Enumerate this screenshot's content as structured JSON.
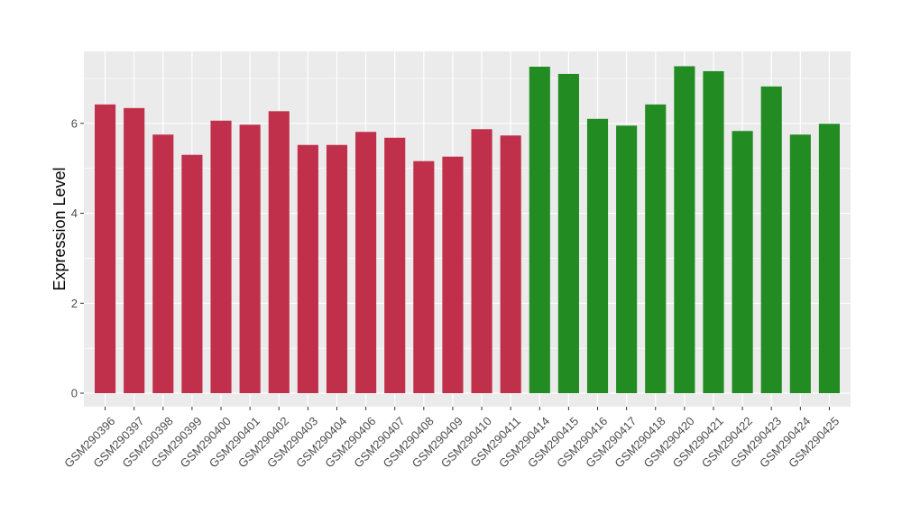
{
  "chart_data": {
    "type": "bar",
    "title": "",
    "xlabel": "",
    "ylabel": "Expression Level",
    "ylim": [
      -0.3,
      7.6
    ],
    "yticks": [
      0,
      2,
      4,
      6
    ],
    "grid": true,
    "legend": "none",
    "colors": {
      "group_a": "#c0304a",
      "group_b": "#228b22",
      "panel": "#ebebeb",
      "grid": "#ffffff"
    },
    "categories": [
      "GSM290396",
      "GSM290397",
      "GSM290398",
      "GSM290399",
      "GSM290400",
      "GSM290401",
      "GSM290402",
      "GSM290403",
      "GSM290404",
      "GSM290406",
      "GSM290407",
      "GSM290408",
      "GSM290409",
      "GSM290410",
      "GSM290411",
      "GSM290414",
      "GSM290415",
      "GSM290416",
      "GSM290417",
      "GSM290418",
      "GSM290420",
      "GSM290421",
      "GSM290422",
      "GSM290423",
      "GSM290424",
      "GSM290425"
    ],
    "values": [
      6.42,
      6.34,
      5.75,
      5.3,
      6.06,
      5.97,
      6.27,
      5.52,
      5.52,
      5.81,
      5.68,
      5.16,
      5.26,
      5.87,
      5.73,
      7.26,
      7.1,
      6.1,
      5.95,
      6.42,
      7.27,
      7.16,
      5.83,
      6.82,
      5.75,
      5.99
    ],
    "groups": [
      "a",
      "a",
      "a",
      "a",
      "a",
      "a",
      "a",
      "a",
      "a",
      "a",
      "a",
      "a",
      "a",
      "a",
      "a",
      "b",
      "b",
      "b",
      "b",
      "b",
      "b",
      "b",
      "b",
      "b",
      "b",
      "b"
    ]
  }
}
